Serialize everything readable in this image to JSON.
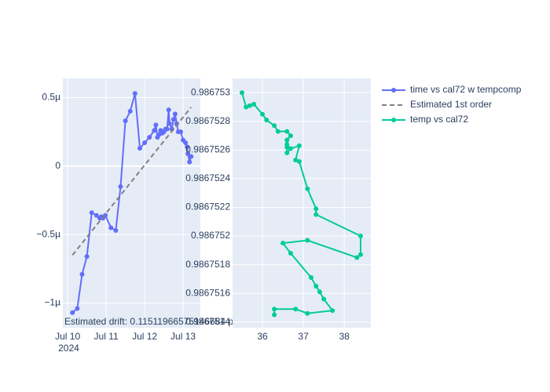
{
  "chart_data": [
    {
      "type": "line",
      "x": [
        "2024-07-10T03:00",
        "2024-07-10T06:00",
        "2024-07-10T09:00",
        "2024-07-10T12:00",
        "2024-07-10T15:00",
        "2024-07-10T18:00",
        "2024-07-10T20:00",
        "2024-07-10T21:00",
        "2024-07-10T22:00",
        "2024-07-10T23:30",
        "2024-07-11T03:00",
        "2024-07-11T06:00",
        "2024-07-11T09:00",
        "2024-07-11T12:00",
        "2024-07-11T15:00",
        "2024-07-11T18:00",
        "2024-07-11T21:00",
        "2024-07-12T00:00",
        "2024-07-12T03:00",
        "2024-07-12T06:00",
        "2024-07-12T07:00",
        "2024-07-12T08:00",
        "2024-07-12T09:00",
        "2024-07-12T10:00",
        "2024-07-12T11:00",
        "2024-07-12T12:00",
        "2024-07-12T13:00",
        "2024-07-12T14:00",
        "2024-07-12T15:00",
        "2024-07-12T15:30",
        "2024-07-12T17:00",
        "2024-07-12T18:00",
        "2024-07-12T19:00",
        "2024-07-12T20:00",
        "2024-07-12T21:00",
        "2024-07-12T22:30",
        "2024-07-13T00:00",
        "2024-07-13T01:30",
        "2024-07-13T02:30",
        "2024-07-13T03:00",
        "2024-07-13T04:00",
        "2024-07-13T05:00"
      ],
      "series": [
        {
          "name": "time vs cal72 w tempcomp",
          "color": "#636efa",
          "mode": "lines+markers",
          "values": [
            -1.07e-06,
            -1.04e-06,
            -7.9e-07,
            -6.6e-07,
            -3.4e-07,
            -3.6e-07,
            -3.8e-07,
            -3.7e-07,
            -3.8e-07,
            -3.6e-07,
            -4.5e-07,
            -4.7e-07,
            -1.5e-07,
            3.3e-07,
            4e-07,
            5.3e-07,
            1.3e-07,
            1.7e-07,
            2.1e-07,
            2.6e-07,
            3e-07,
            2.1e-07,
            2.3e-07,
            2.6e-07,
            2.4e-07,
            2.5e-07,
            2.7e-07,
            2.7e-07,
            4.1e-07,
            3.1e-07,
            2.7e-07,
            3.4e-07,
            3.8e-07,
            3.1e-07,
            2.5e-07,
            2.5e-07,
            1.9e-07,
            1.7e-07,
            1.4e-07,
            9e-08,
            3e-08,
            7e-08
          ]
        },
        {
          "name": "Estimated 1st order",
          "color": "#808080",
          "mode": "dash",
          "x": [
            "2024-07-10T03:00",
            "2024-07-13T05:00"
          ],
          "values": [
            -6.5e-07,
            4.3e-07
          ]
        }
      ],
      "xlim": [
        "2024-07-09T21:00",
        "2024-07-13T10:45"
      ],
      "xticks": [
        {
          "value": "2024-07-10T00:00",
          "label": "Jul 10\n2024"
        },
        {
          "value": "2024-07-11T00:00",
          "label": "Jul 11"
        },
        {
          "value": "2024-07-12T00:00",
          "label": "Jul 12"
        },
        {
          "value": "2024-07-13T00:00",
          "label": "Jul 13"
        }
      ],
      "ylim": [
        -1.18e-06,
        6.4e-07
      ],
      "yticks": [
        {
          "value": 5e-07,
          "label": "0.5µ"
        },
        0,
        {
          "value": -5e-07,
          "label": "−0.5µ"
        },
        {
          "value": -1e-06,
          "label": "−1µ"
        }
      ],
      "grid": true,
      "annotation": "Estimated drift:  0.11511966575146684 ppb/day"
    },
    {
      "type": "line",
      "x": [
        35.5,
        35.6,
        35.69,
        35.79,
        36.0,
        36.1,
        36.29,
        36.38,
        36.6,
        36.69,
        36.6,
        36.6,
        36.6,
        36.6,
        36.69,
        36.9,
        36.81,
        36.9,
        37.1,
        37.31,
        37.31,
        38.4,
        38.4,
        38.31,
        37.1,
        36.5,
        36.69,
        37.19,
        37.31,
        37.4,
        37.5,
        37.71,
        37.1,
        36.81,
        36.29,
        36.29
      ],
      "series": [
        {
          "name": "temp vs cal72",
          "color": "#00cc96",
          "mode": "lines+markers",
          "values": [
            0.986753,
            0.9867529,
            0.98675291,
            0.98675292,
            0.98675285,
            0.98675281,
            0.98675277,
            0.98675273,
            0.98675273,
            0.9867527,
            0.98675267,
            0.98675264,
            0.98675262,
            0.98675258,
            0.98675261,
            0.98675263,
            0.98675253,
            0.98675252,
            0.98675233,
            0.98675219,
            0.98675215,
            0.986752,
            0.98675187,
            0.98675185,
            0.98675197,
            0.98675195,
            0.98675188,
            0.98675171,
            0.98675165,
            0.98675161,
            0.98675156,
            0.98675148,
            0.98675146,
            0.98675149,
            0.98675149,
            0.98675145
          ]
        }
      ],
      "xlim": [
        35.27,
        38.65
      ],
      "xticks": [
        36,
        37,
        38
      ],
      "ylim": [
        0.98675136,
        0.9867531
      ],
      "yticks": [
        0.986753,
        0.9867528,
        0.9867526,
        0.9867524,
        0.9867522,
        0.986752,
        0.9867518,
        0.9867516,
        0.9867514
      ],
      "grid": true,
      "legend": "right-top"
    }
  ]
}
